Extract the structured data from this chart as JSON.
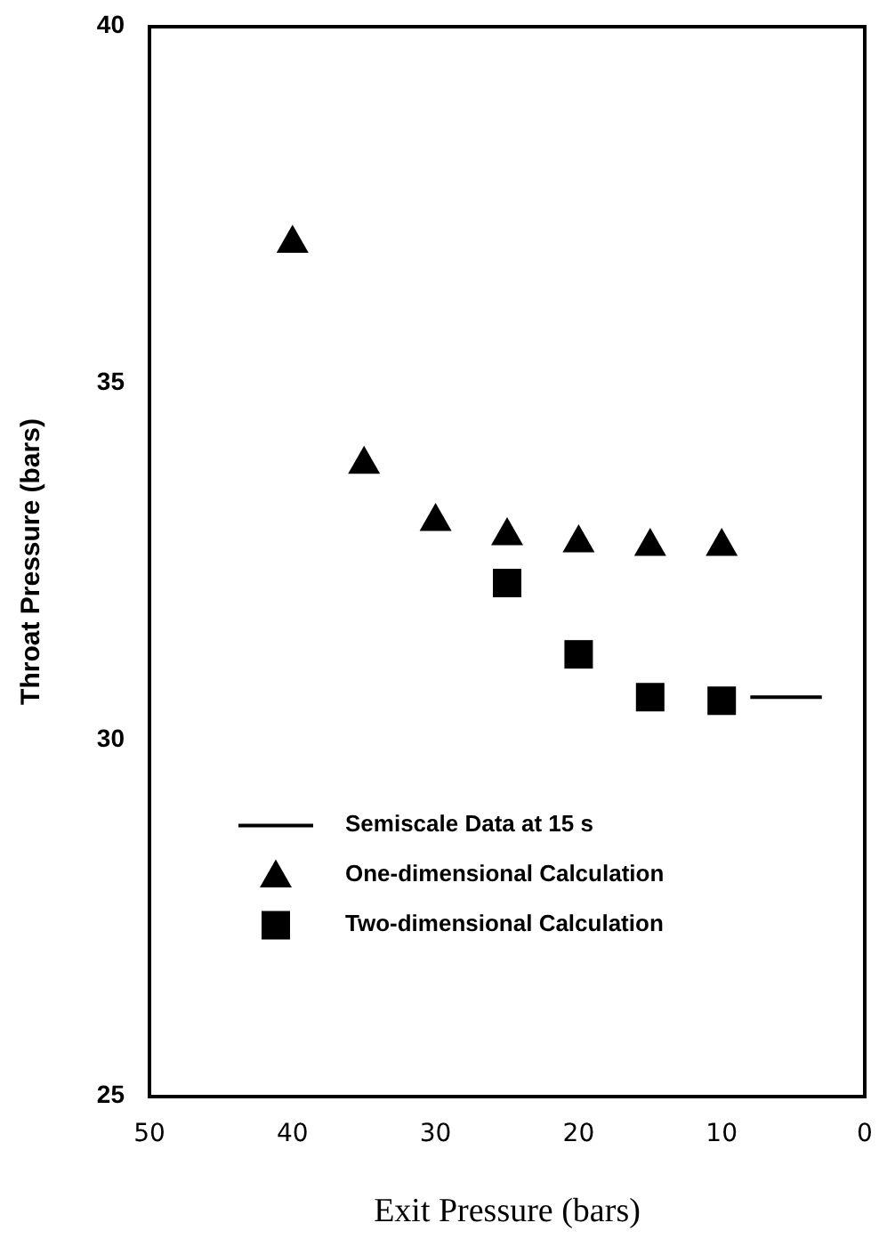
{
  "chart_data": {
    "type": "scatter",
    "xlabel": "Exit Pressure (bars)",
    "ylabel": "Throat Pressure (bars)",
    "xlim": [
      50,
      0
    ],
    "ylim": [
      25,
      40
    ],
    "xticks": [
      50,
      40,
      30,
      20,
      10,
      0
    ],
    "yticks": [
      25,
      30,
      35,
      40
    ],
    "grid": false,
    "legend": "bottom left",
    "series": [
      {
        "name": "Semiscale Data at 15 s",
        "type": "line",
        "color": "#000000",
        "marker": "none",
        "line_style": "solid",
        "x": [
          8,
          3
        ],
        "values": [
          30.6,
          30.6
        ]
      },
      {
        "name": "One-dimensional Calculation",
        "color": "#000000",
        "marker": "triangle",
        "x": [
          40,
          35,
          30,
          25,
          20,
          15,
          10
        ],
        "values": [
          37.0,
          33.9,
          33.1,
          32.9,
          32.8,
          32.75,
          32.75
        ]
      },
      {
        "name": "Two-dimensional Calculation",
        "color": "#000000",
        "marker": "square",
        "x": [
          25,
          20,
          15,
          10
        ],
        "values": [
          32.2,
          31.2,
          30.6,
          30.55
        ]
      }
    ]
  }
}
